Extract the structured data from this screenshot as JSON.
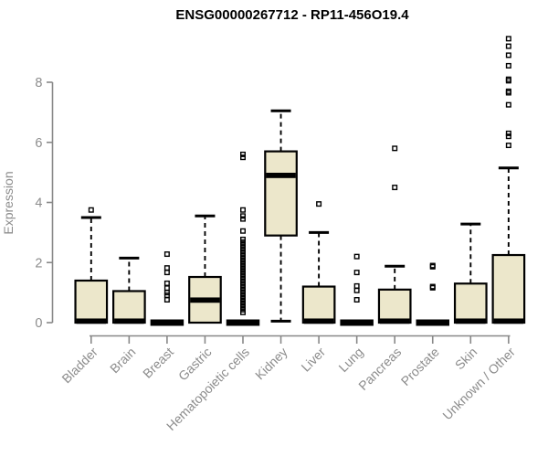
{
  "chart_data": {
    "type": "boxplot",
    "title": "ENSG00000267712 - RP11-456O19.4",
    "ylabel": "Expression",
    "xlabel": "",
    "ylim": [
      0,
      9.6
    ],
    "yticks": [
      0,
      2,
      4,
      6,
      8
    ],
    "grid": false,
    "legend": "none",
    "box_fill": "#ECE7CB",
    "box_stroke": "#000000",
    "axis_color": "#888888",
    "label_color": "#8c8c8c",
    "categories": [
      "Bladder",
      "Brain",
      "Breast",
      "Gastric",
      "Hematopoietic cells",
      "Kidney",
      "Liver",
      "Lung",
      "Pancreas",
      "Prostate",
      "Skin",
      "Unknown / Other"
    ],
    "boxes": [
      {
        "label": "Bladder",
        "q1": 0,
        "median": 0.05,
        "q3": 1.4,
        "whisker_low": 0,
        "whisker_high": 3.5,
        "outliers": [
          3.75
        ]
      },
      {
        "label": "Brain",
        "q1": 0,
        "median": 0.05,
        "q3": 1.05,
        "whisker_low": 0,
        "whisker_high": 2.15,
        "outliers": []
      },
      {
        "label": "Breast",
        "q1": 0,
        "median": 0,
        "q3": 0,
        "whisker_low": 0,
        "whisker_high": 0,
        "outliers": [
          2.28,
          1.82,
          1.67,
          1.31,
          1.15,
          1.0,
          0.91,
          0.76
        ]
      },
      {
        "label": "Gastric",
        "q1": 0,
        "median": 0.75,
        "q3": 1.52,
        "whisker_low": 0,
        "whisker_high": 3.55,
        "outliers": []
      },
      {
        "label": "Hematopoietic cells",
        "q1": 0,
        "median": 0,
        "q3": 0,
        "whisker_low": 0,
        "whisker_high": 0,
        "outliers": [
          5.6,
          5.5,
          3.75,
          3.55,
          3.45,
          3.05,
          2.77,
          2.68,
          2.59,
          2.5,
          2.41,
          2.32,
          2.23,
          2.14,
          2.05,
          1.96,
          1.87,
          1.78,
          1.69,
          1.6,
          1.51,
          1.42,
          1.33,
          1.24,
          1.15,
          1.06,
          0.97,
          0.88,
          0.79,
          0.7,
          0.61,
          0.52,
          0.43,
          0.34
        ]
      },
      {
        "label": "Kidney",
        "q1": 2.9,
        "median": 4.9,
        "q3": 5.7,
        "whisker_low": 0.05,
        "whisker_high": 7.05,
        "outliers": []
      },
      {
        "label": "Liver",
        "q1": 0,
        "median": 0.05,
        "q3": 1.2,
        "whisker_low": 0,
        "whisker_high": 3.0,
        "outliers": [
          3.95
        ]
      },
      {
        "label": "Lung",
        "q1": 0,
        "median": 0,
        "q3": 0,
        "whisker_low": 0,
        "whisker_high": 0,
        "outliers": [
          2.2,
          1.67,
          1.22,
          1.07,
          0.76
        ]
      },
      {
        "label": "Pancreas",
        "q1": 0,
        "median": 0.05,
        "q3": 1.1,
        "whisker_low": 0,
        "whisker_high": 1.88,
        "outliers": [
          5.8,
          4.5
        ]
      },
      {
        "label": "Prostate",
        "q1": 0,
        "median": 0,
        "q3": 0,
        "whisker_low": 0,
        "whisker_high": 0,
        "outliers": [
          1.9,
          1.86,
          1.2,
          1.16
        ]
      },
      {
        "label": "Skin",
        "q1": 0,
        "median": 0.05,
        "q3": 1.3,
        "whisker_low": 0,
        "whisker_high": 3.28,
        "outliers": []
      },
      {
        "label": "Unknown / Other",
        "q1": 0,
        "median": 0.05,
        "q3": 2.25,
        "whisker_low": 0,
        "whisker_high": 5.15,
        "outliers": [
          9.45,
          9.2,
          8.9,
          8.55,
          8.1,
          8.05,
          7.7,
          7.65,
          7.25,
          6.3,
          6.2,
          5.9
        ]
      }
    ]
  }
}
